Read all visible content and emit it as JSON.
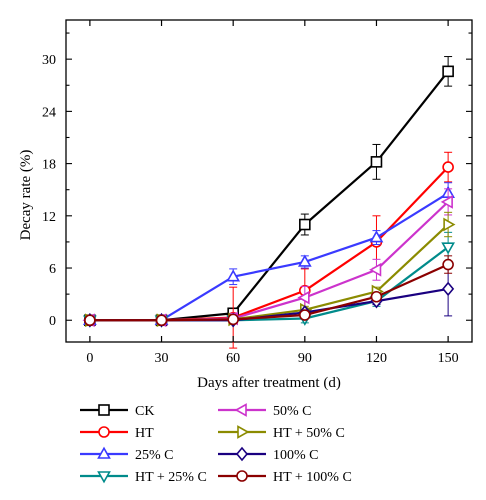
{
  "chart_data": {
    "type": "line",
    "xlabel": "Days after treatment (d)",
    "ylabel": "Decay rate (%)",
    "x": [
      0,
      30,
      60,
      90,
      120,
      150
    ],
    "x_ticks": [
      "0",
      "30",
      "60",
      "90",
      "120",
      "150"
    ],
    "y_ticks": [
      "0",
      "6",
      "12",
      "18",
      "24",
      "30"
    ],
    "xlim": [
      -10,
      160
    ],
    "ylim": [
      -2.5,
      34.5
    ],
    "grid": false,
    "legend_position": "bottom, two columns",
    "series": [
      {
        "name": "CK",
        "color": "#000000",
        "marker": "square",
        "values": [
          0,
          0,
          0.8,
          11,
          18.2,
          28.6
        ],
        "errors": [
          0,
          0,
          0.4,
          1.2,
          2.0,
          1.7
        ]
      },
      {
        "name": "HT",
        "color": "#ff0000",
        "marker": "circle",
        "values": [
          0,
          0,
          0.3,
          3.4,
          9.0,
          17.6
        ],
        "errors": [
          0,
          0,
          3.5,
          2.5,
          3.0,
          1.7
        ]
      },
      {
        "name": "25% C",
        "color": "#3a3aff",
        "marker": "triangle-up",
        "values": [
          0,
          0,
          5.0,
          6.7,
          9.5,
          14.6
        ],
        "errors": [
          0,
          0,
          0.9,
          0.7,
          0.8,
          1.2
        ]
      },
      {
        "name": "HT + 25% C",
        "color": "#008b8b",
        "marker": "triangle-down",
        "values": [
          0,
          0,
          0,
          0.2,
          2.2,
          8.4
        ],
        "errors": [
          0,
          0,
          0.2,
          0.5,
          0.6,
          1.7
        ]
      },
      {
        "name": "50% C",
        "color": "#cc33cc",
        "marker": "triangle-left",
        "values": [
          0,
          0,
          0.2,
          2.6,
          5.8,
          13.6
        ],
        "errors": [
          0,
          0,
          0.6,
          1.3,
          1.2,
          1.5
        ]
      },
      {
        "name": "HT + 50% C",
        "color": "#8b8b00",
        "marker": "triangle-right",
        "values": [
          0,
          0,
          0.1,
          1.2,
          3.3,
          11.0
        ],
        "errors": [
          0,
          0,
          0.2,
          0.4,
          0.5,
          1.4
        ]
      },
      {
        "name": "100% C",
        "color": "#1a0080",
        "marker": "diamond",
        "values": [
          0,
          0,
          0,
          0.9,
          2.2,
          3.6
        ],
        "errors": [
          0,
          0,
          0.2,
          0.3,
          0.4,
          3.1
        ]
      },
      {
        "name": "HT + 100% C",
        "color": "#8b0000",
        "marker": "circle",
        "values": [
          0,
          0,
          0.1,
          0.6,
          2.7,
          6.4
        ],
        "errors": [
          0,
          0,
          0.2,
          0.3,
          0.4,
          1.0
        ]
      }
    ]
  }
}
